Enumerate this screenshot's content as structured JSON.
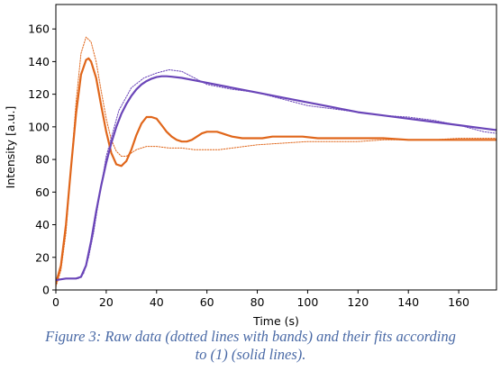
{
  "chart_data": {
    "type": "line",
    "xlabel": "Time (s)",
    "ylabel": "Intensity [a.u.]",
    "xlim": [
      0,
      175
    ],
    "ylim": [
      0,
      175
    ],
    "x_ticks": [
      0,
      20,
      40,
      60,
      80,
      100,
      120,
      140,
      160
    ],
    "y_ticks": [
      0,
      20,
      40,
      60,
      80,
      100,
      120,
      140,
      160
    ],
    "grid": false,
    "series": [
      {
        "kind": "raw-dotted",
        "color": "#e0661a",
        "x": [
          0,
          2,
          4,
          6,
          8,
          10,
          12,
          14,
          16,
          18,
          20,
          22,
          24,
          26,
          28,
          30,
          32,
          34,
          36,
          38,
          40,
          45,
          50,
          55,
          60,
          65,
          70,
          75,
          80,
          90,
          100,
          110,
          120,
          130,
          140,
          150,
          160,
          170,
          175
        ],
        "values": [
          2,
          12,
          35,
          75,
          115,
          145,
          155,
          152,
          140,
          122,
          105,
          92,
          85,
          82,
          82,
          84,
          86,
          87,
          88,
          88,
          88,
          87,
          87,
          86,
          86,
          86,
          87,
          88,
          89,
          90,
          91,
          91,
          91,
          92,
          92,
          92,
          93,
          93,
          93
        ]
      },
      {
        "kind": "raw-dotted",
        "color": "#6a45b8",
        "x": [
          0,
          5,
          9,
          11,
          13,
          15,
          17,
          20,
          25,
          30,
          35,
          40,
          45,
          50,
          55,
          60,
          70,
          80,
          90,
          100,
          110,
          120,
          130,
          140,
          150,
          160,
          170,
          175
        ],
        "values": [
          6,
          7,
          7,
          10,
          20,
          35,
          55,
          82,
          110,
          124,
          130,
          133,
          135,
          134,
          130,
          126,
          123,
          121,
          117,
          113,
          111,
          109,
          107,
          106,
          104,
          101,
          97,
          96
        ]
      },
      {
        "kind": "fit-solid",
        "color": "#e0661a",
        "x": [
          0,
          2,
          4,
          6,
          8,
          10,
          12,
          13,
          14,
          16,
          18,
          20,
          22,
          24,
          26,
          28,
          30,
          32,
          34,
          36,
          38,
          40,
          42,
          44,
          46,
          48,
          50,
          52,
          54,
          56,
          58,
          60,
          62,
          64,
          66,
          68,
          70,
          74,
          78,
          82,
          86,
          90,
          94,
          98,
          104,
          112,
          120,
          130,
          140,
          150,
          160,
          175
        ],
        "values": [
          4,
          15,
          40,
          75,
          108,
          132,
          141,
          142,
          140,
          130,
          113,
          97,
          84,
          77,
          76,
          79,
          86,
          95,
          102,
          106,
          106,
          105,
          101,
          97,
          94,
          92,
          91,
          91,
          92,
          94,
          96,
          97,
          97,
          97,
          96,
          95,
          94,
          93,
          93,
          93,
          94,
          94,
          94,
          94,
          93,
          93,
          93,
          93,
          92,
          92,
          92,
          92
        ]
      },
      {
        "kind": "fit-solid",
        "color": "#6a45b8",
        "x": [
          0,
          4,
          8,
          10,
          12,
          14,
          16,
          18,
          20,
          22,
          24,
          26,
          28,
          30,
          32,
          34,
          36,
          38,
          40,
          42,
          44,
          46,
          50,
          55,
          60,
          70,
          80,
          90,
          100,
          110,
          120,
          130,
          140,
          150,
          160,
          170,
          175
        ],
        "values": [
          6,
          7,
          7,
          8,
          15,
          30,
          48,
          64,
          78,
          90,
          100,
          108,
          114,
          119,
          123,
          126,
          128,
          129.5,
          130.5,
          131,
          131,
          130.7,
          130,
          128.5,
          127,
          124,
          121,
          118,
          115,
          112,
          109,
          107,
          105,
          103,
          101,
          99,
          98
        ]
      }
    ]
  },
  "caption": {
    "line1": "Figure 3: Raw data (dotted lines with bands) and their  fits according",
    "line2": "to (1) (solid lines)."
  }
}
